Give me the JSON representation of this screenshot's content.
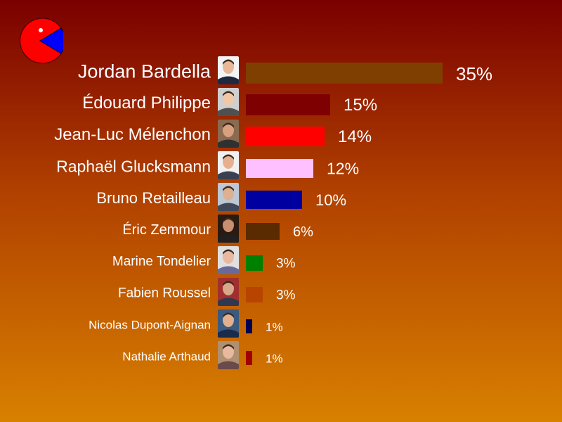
{
  "chart_data": {
    "type": "bar",
    "orientation": "horizontal",
    "categories": [
      "Jordan Bardella",
      "Édouard Philippe",
      "Jean-Luc Mélenchon",
      "Raphaël Glucksmann",
      "Bruno Retailleau",
      "Éric Zemmour",
      "Marine Tondelier",
      "Fabien Roussel",
      "Nicolas Dupont-Aignan",
      "Nathalie Arthaud"
    ],
    "values": [
      35,
      15,
      14,
      12,
      10,
      6,
      3,
      3,
      1,
      1
    ],
    "value_labels": [
      "35%",
      "15%",
      "14%",
      "12%",
      "10%",
      "6%",
      "3%",
      "3%",
      "1%",
      "1%"
    ],
    "colors": [
      "#7f3f00",
      "#7f0000",
      "#ff0000",
      "#ffc0ff",
      "#0000a0",
      "#5a2a00",
      "#008000",
      "#b84400",
      "#000050",
      "#a00000"
    ],
    "ylim": [
      0,
      35
    ],
    "grid": false,
    "legend": "none"
  },
  "logo": {
    "icon": "pacman-pie-icon",
    "colors": [
      "#ff0000",
      "#0000ff"
    ]
  }
}
